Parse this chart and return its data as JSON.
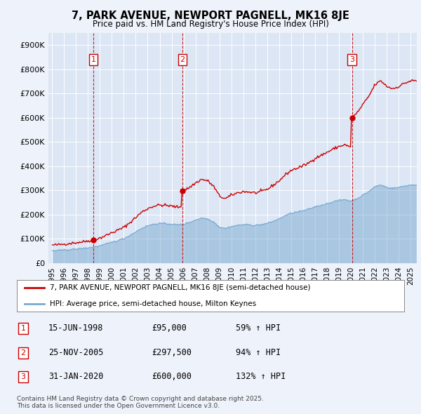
{
  "title": "7, PARK AVENUE, NEWPORT PAGNELL, MK16 8JE",
  "subtitle": "Price paid vs. HM Land Registry's House Price Index (HPI)",
  "background_color": "#eef2fa",
  "plot_background": "#dce6f5",
  "red_color": "#cc0000",
  "blue_color": "#7aaad0",
  "ylim": [
    0,
    950000
  ],
  "yticks": [
    0,
    100000,
    200000,
    300000,
    400000,
    500000,
    600000,
    700000,
    800000,
    900000
  ],
  "ytick_labels": [
    "£0",
    "£100K",
    "£200K",
    "£300K",
    "£400K",
    "£500K",
    "£600K",
    "£700K",
    "£800K",
    "£900K"
  ],
  "sale_dates_num": [
    1998.46,
    2005.9,
    2020.08
  ],
  "sale_prices": [
    95000,
    297500,
    600000
  ],
  "sale_labels": [
    "1",
    "2",
    "3"
  ],
  "legend_line1": "7, PARK AVENUE, NEWPORT PAGNELL, MK16 8JE (semi-detached house)",
  "legend_line2": "HPI: Average price, semi-detached house, Milton Keynes",
  "table_entries": [
    {
      "num": "1",
      "date": "15-JUN-1998",
      "price": "£95,000",
      "hpi": "59% ↑ HPI"
    },
    {
      "num": "2",
      "date": "25-NOV-2005",
      "price": "£297,500",
      "hpi": "94% ↑ HPI"
    },
    {
      "num": "3",
      "date": "31-JAN-2020",
      "price": "£600,000",
      "hpi": "132% ↑ HPI"
    }
  ],
  "footnote": "Contains HM Land Registry data © Crown copyright and database right 2025.\nThis data is licensed under the Open Government Licence v3.0.",
  "xlim_left": 1994.7,
  "xlim_right": 2025.5,
  "xtick_years": [
    1995,
    1996,
    1997,
    1998,
    1999,
    2000,
    2001,
    2002,
    2003,
    2004,
    2005,
    2006,
    2007,
    2008,
    2009,
    2010,
    2011,
    2012,
    2013,
    2014,
    2015,
    2016,
    2017,
    2018,
    2019,
    2020,
    2021,
    2022,
    2023,
    2024,
    2025
  ]
}
